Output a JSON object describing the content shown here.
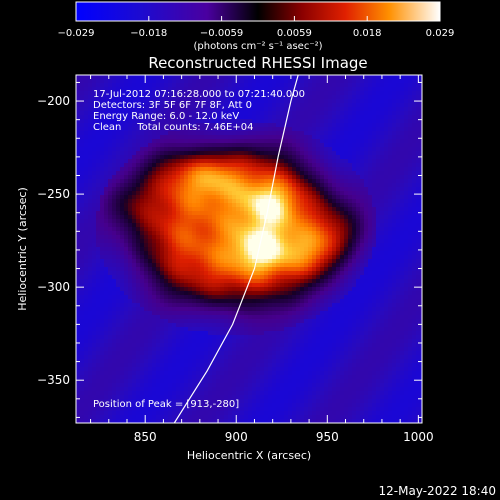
{
  "chart_data": {
    "type": "heatmap",
    "title": "Reconstructed RHESSI Image",
    "xlabel": "Heliocentric X (arcsec)",
    "ylabel": "Heliocentric Y (arcsec)",
    "xlim": [
      812,
      1002
    ],
    "ylim": [
      -373,
      -186
    ],
    "x_ticks": [
      850,
      900,
      950,
      1000
    ],
    "y_ticks": [
      -200,
      -250,
      -300,
      -350
    ],
    "grid": false,
    "colorbar": {
      "range": [
        -0.029,
        0.029
      ],
      "ticks": [
        "−0.029",
        "−0.018",
        "−0.0059",
        "0.0059",
        "0.018",
        "0.029"
      ],
      "unit_label": "(photons cm⁻² s⁻¹ asec⁻²)"
    },
    "annotations": [
      "17-Jul-2012 07:16:28.000 to 07:21:40.000",
      "Detectors: 3F 5F 6F 7F 8F, Att 0",
      "Energy Range: 6.0 - 12.0 keV",
      "Clean     Total counts: 7.46E+04"
    ],
    "peak_label": "Position of Peak = [913,-280]",
    "peak": [
      913,
      -280
    ],
    "limb_curve": [
      [
        866,
        -373
      ],
      [
        884,
        -345
      ],
      [
        898,
        -320
      ],
      [
        910,
        -290
      ],
      [
        917,
        -260
      ],
      [
        923,
        -230
      ],
      [
        930,
        -200
      ],
      [
        934,
        -186
      ]
    ],
    "sources": [
      {
        "x": 913,
        "y": -280,
        "peak": 1.0
      },
      {
        "x": 918,
        "y": -255,
        "peak": 0.9
      },
      {
        "x": 942,
        "y": -282,
        "peak": 0.7
      },
      {
        "x": 886,
        "y": -240,
        "peak": 0.7
      },
      {
        "x": 862,
        "y": -237,
        "peak": 0.62
      },
      {
        "x": 840,
        "y": -255,
        "peak": 0.55
      },
      {
        "x": 958,
        "y": -270,
        "peak": 0.55
      }
    ]
  },
  "footer_date": "12-May-2022 18:40"
}
